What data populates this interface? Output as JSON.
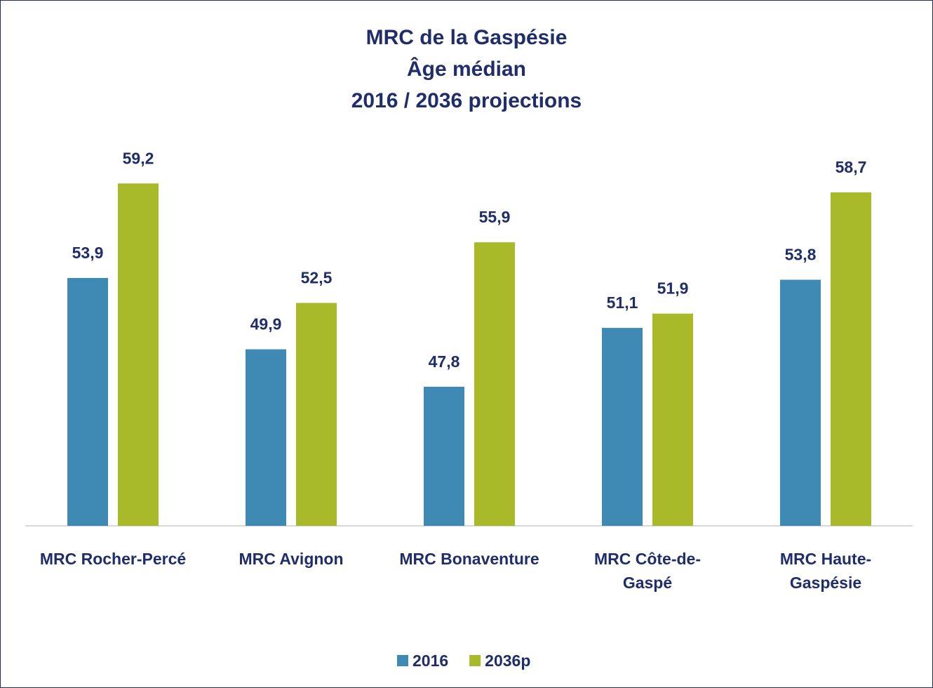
{
  "chart_data": {
    "type": "bar",
    "title": "MRC de la Gaspésie\nÂge médian\n2016 / 2036 projections",
    "categories": [
      "MRC Rocher-Percé",
      "MRC Avignon",
      "MRC Bonaventure",
      "MRC Côte-de-\nGaspé",
      "MRC Haute-\nGaspésie"
    ],
    "series": [
      {
        "name": "2016",
        "color": "#3f8ab5",
        "values": [
          53.9,
          49.9,
          47.8,
          51.1,
          53.8
        ],
        "value_labels": [
          "53,9",
          "49,9",
          "47,8",
          "51,1",
          "53,8"
        ]
      },
      {
        "name": "2036p",
        "color": "#a8b92a",
        "values": [
          59.2,
          52.5,
          55.9,
          51.9,
          58.7
        ],
        "value_labels": [
          "59,2",
          "52,5",
          "55,9",
          "51,9",
          "58,7"
        ]
      }
    ],
    "ylim": [
      40,
      60
    ],
    "legend": "bottom"
  }
}
